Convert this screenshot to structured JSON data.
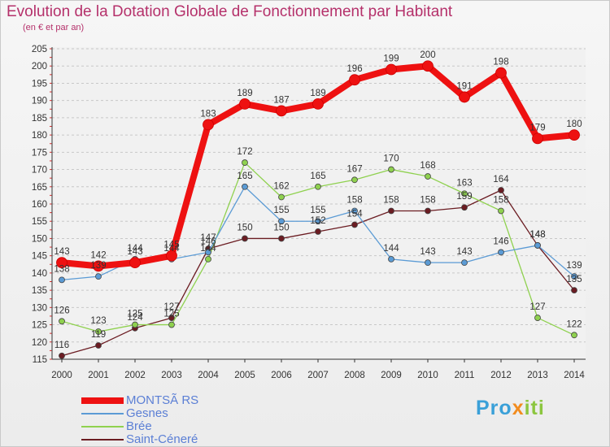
{
  "chart_data": {
    "type": "line",
    "title": "Evolution de la Dotation Globale de Fonctionnement par Habitant",
    "subtitle": "(en € et par an)",
    "xlabel": "",
    "ylabel": "",
    "ylim": [
      115,
      205
    ],
    "ytick_step": 5,
    "grid": "horizontal dashed",
    "categories": [
      "2000",
      "2001",
      "2002",
      "2003",
      "2004",
      "2005",
      "2006",
      "2007",
      "2008",
      "2009",
      "2010",
      "2011",
      "2012",
      "2013",
      "2014"
    ],
    "series": [
      {
        "name": "MONTSÃ RS",
        "color": "#ee1111",
        "emphasis": true,
        "values": [
          143,
          142,
          143,
          145,
          183,
          189,
          187,
          189,
          196,
          199,
          200,
          191,
          198,
          179,
          180
        ]
      },
      {
        "name": "Gesnes",
        "color": "#5b9bd5",
        "values": [
          138,
          139,
          144,
          144,
          146,
          165,
          155,
          155,
          158,
          144,
          143,
          143,
          146,
          148,
          139
        ]
      },
      {
        "name": "Brée",
        "color": "#8fd14f",
        "values": [
          126,
          123,
          125,
          125,
          144,
          172,
          162,
          165,
          167,
          170,
          168,
          163,
          158,
          127,
          122
        ]
      },
      {
        "name": "Saint-Céneré",
        "color": "#6b1c22",
        "values": [
          116,
          119,
          124,
          127,
          147,
          150,
          150,
          152,
          154,
          158,
          158,
          159,
          164,
          148,
          135
        ]
      }
    ]
  },
  "logo": {
    "text": "Proxiti"
  }
}
